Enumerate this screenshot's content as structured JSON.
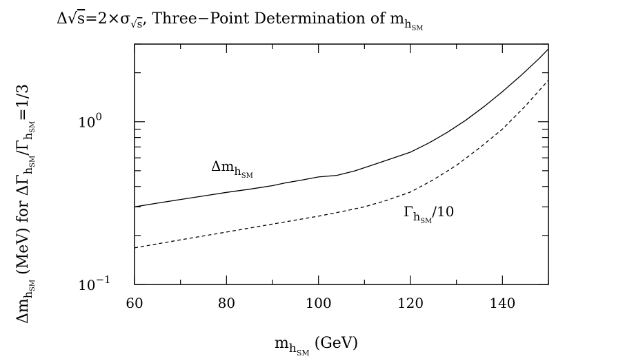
{
  "chart_data": {
    "type": "line",
    "title": "Δ√s=2×σ√s, Three−Point Determination of mhSM",
    "xlabel": "mhSM (GeV)",
    "ylabel": "ΔmhSM (MeV) for ΔΓhSM/ΓhSM=1/3",
    "xlim": [
      60,
      150
    ],
    "ylim": [
      0.1,
      3.0
    ],
    "yscale": "log",
    "x_ticks": [
      "60",
      "80",
      "100",
      "120",
      "140"
    ],
    "y_ticks": [
      {
        "base": "10",
        "exp": "0",
        "value": 1
      },
      {
        "base": "10",
        "exp": "−1",
        "value": 0.1
      }
    ],
    "grid": false,
    "series": [
      {
        "name": "ΔmhSM",
        "style": "solid",
        "x": [
          60,
          65,
          70,
          75,
          80,
          85,
          90,
          93,
          96,
          100,
          104,
          108,
          112,
          116,
          120,
          124,
          128,
          132,
          136,
          140,
          144,
          148,
          150
        ],
        "y": [
          0.3,
          0.316,
          0.333,
          0.35,
          0.368,
          0.385,
          0.405,
          0.422,
          0.436,
          0.458,
          0.468,
          0.5,
          0.545,
          0.595,
          0.65,
          0.74,
          0.86,
          1.02,
          1.24,
          1.53,
          1.92,
          2.45,
          2.8
        ]
      },
      {
        "name": "ΓhSM/10",
        "style": "dashed",
        "x": [
          60,
          70,
          80,
          90,
          100,
          105,
          110,
          115,
          120,
          125,
          130,
          135,
          140,
          145,
          150
        ],
        "y": [
          0.168,
          0.188,
          0.21,
          0.235,
          0.263,
          0.28,
          0.3,
          0.33,
          0.37,
          0.44,
          0.54,
          0.69,
          0.9,
          1.25,
          1.8
        ]
      }
    ],
    "annotations": {
      "solid_label": {
        "main": "Δm",
        "sub": "h",
        "subsub": "SM"
      },
      "dashed_label": {
        "main": "Γ",
        "sub": "h",
        "subsub": "SM",
        "suffix": "/10"
      }
    },
    "title_parts": {
      "delta": "Δ",
      "sqrt_s": "s",
      "eq": "=2×σ",
      "sigma_sub": "s",
      "rest": ", Three−Point Determination of m",
      "sub": "h",
      "subsub": "SM"
    },
    "xlabel_parts": {
      "main": "m",
      "sub": "h",
      "subsub": "SM",
      "unit": " (GeV)"
    },
    "ylabel_parts": {
      "a": "Δm",
      "a_sub": "h",
      "a_subsub": "SM",
      "b": " (MeV) for ΔΓ",
      "b_sub": "h",
      "b_subsub": "SM",
      "c": "/Γ",
      "c_sub": "h",
      "c_subsub": "SM",
      "d": "=1/3"
    }
  }
}
